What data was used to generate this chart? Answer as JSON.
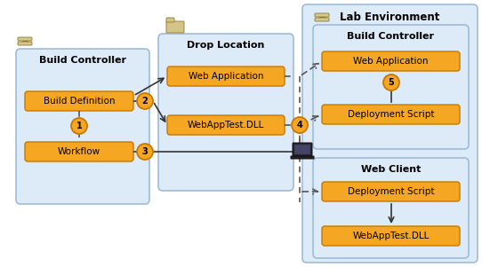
{
  "bg_color": "#ffffff",
  "panel_fill": "#ddeaf7",
  "panel_edge": "#a0bcd8",
  "box_fill": "#f5a623",
  "box_edge": "#c87800",
  "circle_fill": "#f5a623",
  "circle_edge": "#c87800",
  "arrow_color": "#333333",
  "dash_color": "#555555",
  "text_dark": "#000000",
  "lab_env_label": "Lab Environment",
  "left_ctrl_label": "Build Controller",
  "drop_loc_label": "Drop Location",
  "right_bc_label": "Build Controller",
  "web_client_label": "Web Client",
  "left_boxes": [
    "Build Definition",
    "Workflow"
  ],
  "drop_boxes": [
    "Web Application",
    "WebAppTest.DLL"
  ],
  "right_bc_boxes": [
    "Web Application",
    "Deployment Script"
  ],
  "right_wc_boxes": [
    "Deployment Script",
    "WebAppTest.DLL"
  ],
  "circles": [
    "1",
    "2",
    "3",
    "4",
    "5"
  ]
}
